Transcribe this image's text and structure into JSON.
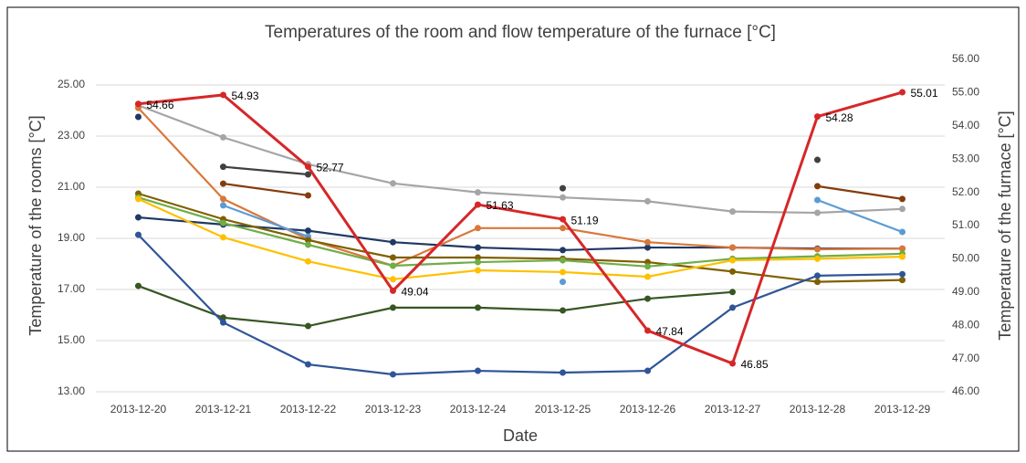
{
  "chart_data": {
    "type": "line",
    "title": "Temperatures of the room and flow temperature of the furnace [°C]",
    "x_label": "Date",
    "y_label": "Temperature of the rooms [°C]",
    "y2_label": "Temperature of the furnace [°C]",
    "categories": [
      "2013-12-20",
      "2013-12-21",
      "2013-12-22",
      "2013-12-23",
      "2013-12-24",
      "2013-12-25",
      "2013-12-26",
      "2013-12-27",
      "2013-12-28",
      "2013-12-29"
    ],
    "ylim": [
      13,
      26
    ],
    "yticks": [
      {
        "value": 13,
        "label": "13.00"
      },
      {
        "value": 15,
        "label": "15.00"
      },
      {
        "value": 17,
        "label": "17.00"
      },
      {
        "value": 19,
        "label": "19.00"
      },
      {
        "value": 21,
        "label": "21.00"
      },
      {
        "value": 23,
        "label": "23.00"
      },
      {
        "value": 25,
        "label": "25.00"
      }
    ],
    "y2lim": [
      46,
      56
    ],
    "y2ticks": [
      {
        "value": 46,
        "label": "46.00"
      },
      {
        "value": 47,
        "label": "47.00"
      },
      {
        "value": 48,
        "label": "48.00"
      },
      {
        "value": 49,
        "label": "49.00"
      },
      {
        "value": 50,
        "label": "50.00"
      },
      {
        "value": 51,
        "label": "51.00"
      },
      {
        "value": 52,
        "label": "52.00"
      },
      {
        "value": 53,
        "label": "53.00"
      },
      {
        "value": 54,
        "label": "54.00"
      },
      {
        "value": 55,
        "label": "55.00"
      },
      {
        "value": 56,
        "label": "56.00"
      }
    ],
    "grid": true,
    "series": [
      {
        "color": "#a5a5a5",
        "values": [
          24.2,
          22.95,
          21.9,
          21.15,
          20.8,
          20.6,
          20.45,
          20.05,
          20.0,
          20.15
        ]
      },
      {
        "color": "#1f3864",
        "values": [
          23.75,
          null,
          null,
          null,
          null,
          null,
          null,
          null,
          null,
          null
        ]
      },
      {
        "color": "#203864",
        "values": [
          19.82,
          19.54,
          19.3,
          18.85,
          18.64,
          18.54,
          18.64,
          18.64,
          18.6,
          18.6
        ]
      },
      {
        "color": "#404040",
        "values": [
          null,
          21.8,
          21.5,
          null,
          null,
          20.96,
          null,
          null,
          22.07,
          null
        ]
      },
      {
        "color": "#843c0c",
        "values": [
          null,
          21.14,
          20.68,
          null,
          null,
          null,
          null,
          null,
          21.04,
          20.54
        ]
      },
      {
        "color": "#d9773a",
        "values": [
          24.1,
          20.54,
          18.96,
          17.93,
          19.4,
          19.4,
          18.85,
          18.64,
          18.57,
          18.6
        ]
      },
      {
        "color": "#5b9bd5",
        "values": [
          null,
          20.29,
          19.07,
          null,
          null,
          17.3,
          null,
          null,
          20.5,
          19.25
        ]
      },
      {
        "color": "#7f6000",
        "values": [
          20.75,
          19.75,
          18.93,
          18.25,
          18.25,
          18.2,
          18.07,
          17.7,
          17.3,
          17.37
        ]
      },
      {
        "color": "#70ad47",
        "values": [
          20.6,
          19.6,
          18.75,
          17.93,
          18.07,
          18.14,
          17.9,
          18.2,
          18.3,
          18.4
        ]
      },
      {
        "color": "#ffc000",
        "values": [
          20.54,
          19.04,
          18.1,
          17.4,
          17.75,
          17.68,
          17.5,
          18.14,
          18.2,
          18.28
        ]
      },
      {
        "color": "#375623",
        "values": [
          17.14,
          15.9,
          15.57,
          16.29,
          16.29,
          16.18,
          16.64,
          16.9,
          null,
          null
        ]
      },
      {
        "color": "#2f5597",
        "values": [
          19.14,
          15.71,
          14.07,
          13.68,
          13.82,
          13.75,
          13.82,
          16.29,
          17.54,
          17.6
        ]
      },
      {
        "color": "#d62728",
        "axis": "y2",
        "values": [
          54.66,
          54.93,
          52.77,
          49.04,
          51.63,
          51.19,
          47.84,
          46.85,
          54.28,
          55.01
        ]
      }
    ]
  }
}
